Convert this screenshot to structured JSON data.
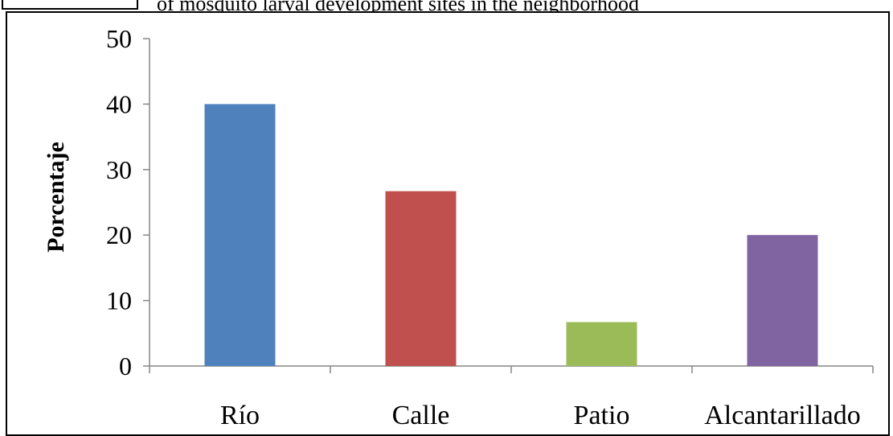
{
  "caption": {
    "visible_fragment": "of mosquito larval development sites in the neighborhood"
  },
  "chart_data": {
    "type": "bar",
    "categories": [
      "Río",
      "Calle",
      "Patio",
      "Alcantarillado"
    ],
    "values": [
      40,
      26.7,
      6.7,
      20
    ],
    "colors": [
      "#4f81bd",
      "#c0504d",
      "#9bbb59",
      "#8064a2"
    ],
    "ylabel": "Porcentaje",
    "xlabel": "",
    "ylim": [
      0,
      50
    ],
    "yticks": [
      0,
      10,
      20,
      30,
      40,
      50
    ],
    "grid": false,
    "legend": "none"
  }
}
